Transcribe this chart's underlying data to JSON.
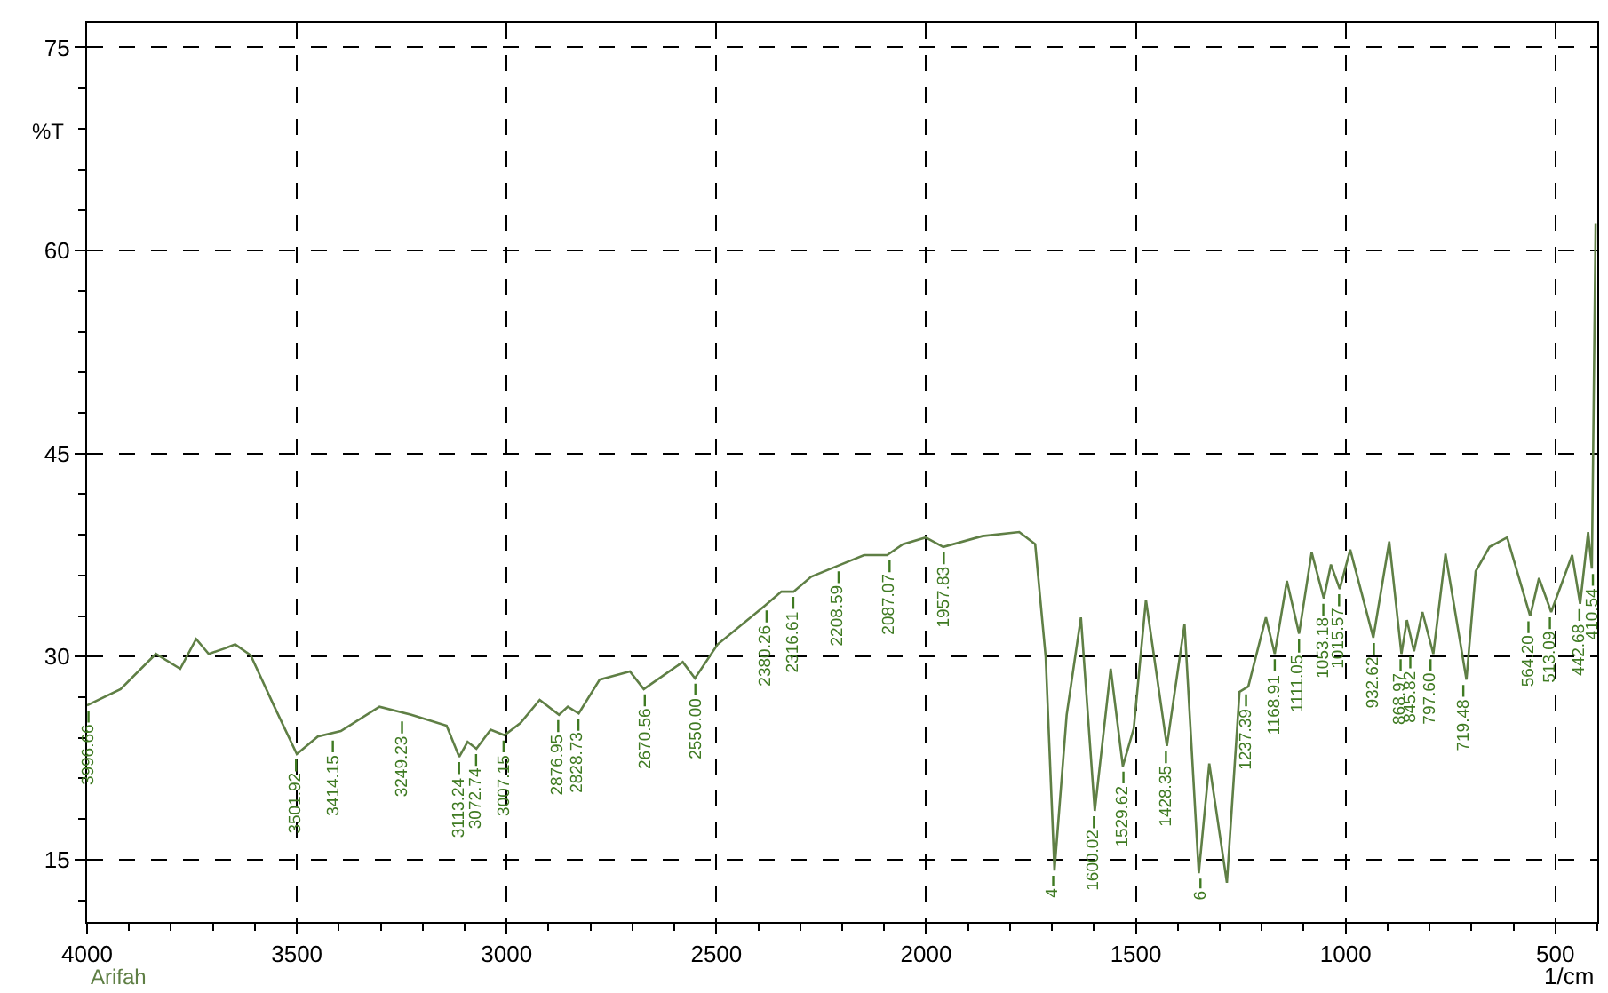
{
  "chart_data": {
    "type": "line",
    "xlabel": "1/cm",
    "ylabel": "%T",
    "xlim": [
      4000,
      400
    ],
    "ylim": [
      10.4,
      76.8
    ],
    "xticks": [
      4000,
      3500,
      3000,
      2500,
      2000,
      1500,
      1000,
      500
    ],
    "yticks": [
      15,
      30,
      45,
      60,
      75
    ],
    "grid": true,
    "marker": "none",
    "line_style": "solid",
    "series": [
      {
        "color": "#5f7f45",
        "x": [
          4000,
          3920,
          3836,
          3778,
          3740,
          3710,
          3672,
          3647,
          3610,
          3555,
          3500,
          3450,
          3395,
          3303,
          3227,
          3143,
          3113,
          3093,
          3072,
          3038,
          3005,
          2967,
          2921,
          2875,
          2854,
          2828,
          2778,
          2706,
          2673,
          2622,
          2580,
          2551,
          2497,
          2387,
          2345,
          2316,
          2274,
          2211,
          2148,
          2093,
          2055,
          2001,
          1959,
          1866,
          1778,
          1740,
          1715,
          1694,
          1665,
          1631,
          1598,
          1560,
          1531,
          1505,
          1476,
          1426,
          1384,
          1350,
          1325,
          1283,
          1253,
          1232,
          1190,
          1169,
          1140,
          1111,
          1081,
          1052,
          1035,
          1014,
          989,
          934,
          896,
          867,
          854,
          837,
          817,
          791,
          762,
          712,
          690,
          657,
          615,
          560,
          539,
          510,
          460,
          441,
          422,
          413,
          404
        ],
        "values": [
          26.4,
          27.6,
          30.2,
          29.1,
          31.3,
          30.2,
          30.6,
          30.9,
          30.1,
          26.4,
          22.8,
          24.1,
          24.5,
          26.3,
          25.7,
          24.9,
          22.6,
          23.7,
          23.2,
          24.6,
          24.2,
          25.1,
          26.8,
          25.7,
          26.3,
          25.8,
          28.3,
          28.9,
          27.6,
          28.7,
          29.6,
          28.4,
          30.9,
          33.7,
          34.8,
          34.8,
          35.9,
          36.7,
          37.5,
          37.5,
          38.3,
          38.8,
          38.1,
          38.9,
          39.2,
          38.3,
          30.0,
          14.2,
          25.7,
          32.9,
          18.6,
          29.1,
          21.9,
          24.7,
          34.2,
          23.4,
          32.4,
          14.0,
          22.1,
          13.3,
          27.4,
          27.8,
          32.9,
          30.2,
          35.6,
          31.7,
          37.7,
          34.3,
          36.8,
          35.0,
          37.9,
          31.4,
          38.5,
          30.2,
          32.7,
          30.4,
          33.3,
          30.2,
          37.6,
          28.3,
          36.3,
          38.1,
          38.8,
          33.0,
          35.8,
          33.3,
          37.5,
          33.9,
          39.2,
          36.5,
          62.0
        ]
      }
    ],
    "annotations": [
      {
        "text": "3996.66",
        "x": 3996.66,
        "y": 26.4
      },
      {
        "text": "3501.92",
        "x": 3501.92,
        "y": 22.8
      },
      {
        "text": "3414.15",
        "x": 3414.15,
        "y": 24.2
      },
      {
        "text": "3249.23",
        "x": 3249.23,
        "y": 25.6
      },
      {
        "text": "3113.24",
        "x": 3113.24,
        "y": 22.6
      },
      {
        "text": "3072.74",
        "x": 3072.74,
        "y": 23.2
      },
      {
        "text": "3007.15",
        "x": 3007.15,
        "y": 24.2
      },
      {
        "text": "2876.95",
        "x": 2876.95,
        "y": 25.7
      },
      {
        "text": "2828.73",
        "x": 2828.73,
        "y": 25.8
      },
      {
        "text": "2670.56",
        "x": 2670.56,
        "y": 27.6
      },
      {
        "text": "2550.00",
        "x": 2550.0,
        "y": 28.4
      },
      {
        "text": "2380.26",
        "x": 2380.26,
        "y": 33.8
      },
      {
        "text": "2316.61",
        "x": 2316.61,
        "y": 34.8
      },
      {
        "text": "2208.59",
        "x": 2208.59,
        "y": 36.7
      },
      {
        "text": "2087.07",
        "x": 2087.07,
        "y": 37.5
      },
      {
        "text": "1957.83",
        "x": 1957.83,
        "y": 38.1
      },
      {
        "text": "4",
        "x": 1697,
        "y": 14.2
      },
      {
        "text": "1600.02",
        "x": 1600.02,
        "y": 18.6
      },
      {
        "text": "1529.62",
        "x": 1529.62,
        "y": 21.9
      },
      {
        "text": "1428.35",
        "x": 1428.35,
        "y": 23.4
      },
      {
        "text": "6",
        "x": 1346,
        "y": 14.0
      },
      {
        "text": "1237.39",
        "x": 1237.39,
        "y": 27.6
      },
      {
        "text": "1168.91",
        "x": 1168.91,
        "y": 30.2
      },
      {
        "text": "1111.05",
        "x": 1111.05,
        "y": 31.7
      },
      {
        "text": "1053.18",
        "x": 1053.18,
        "y": 34.3
      },
      {
        "text": "1015.57",
        "x": 1015.57,
        "y": 35.0
      },
      {
        "text": "932.62",
        "x": 932.62,
        "y": 31.4
      },
      {
        "text": "868.97",
        "x": 868.97,
        "y": 30.2
      },
      {
        "text": "845.82",
        "x": 845.82,
        "y": 30.4
      },
      {
        "text": "797.60",
        "x": 797.6,
        "y": 30.2
      },
      {
        "text": "719.48",
        "x": 719.48,
        "y": 28.3
      },
      {
        "text": "564.20",
        "x": 564.2,
        "y": 33.0
      },
      {
        "text": "513.09",
        "x": 513.09,
        "y": 33.3
      },
      {
        "text": "442.68",
        "x": 442.68,
        "y": 33.9
      },
      {
        "text": "410.54",
        "x": 410.54,
        "y": 36.5
      },
      "Arifah"
    ]
  }
}
